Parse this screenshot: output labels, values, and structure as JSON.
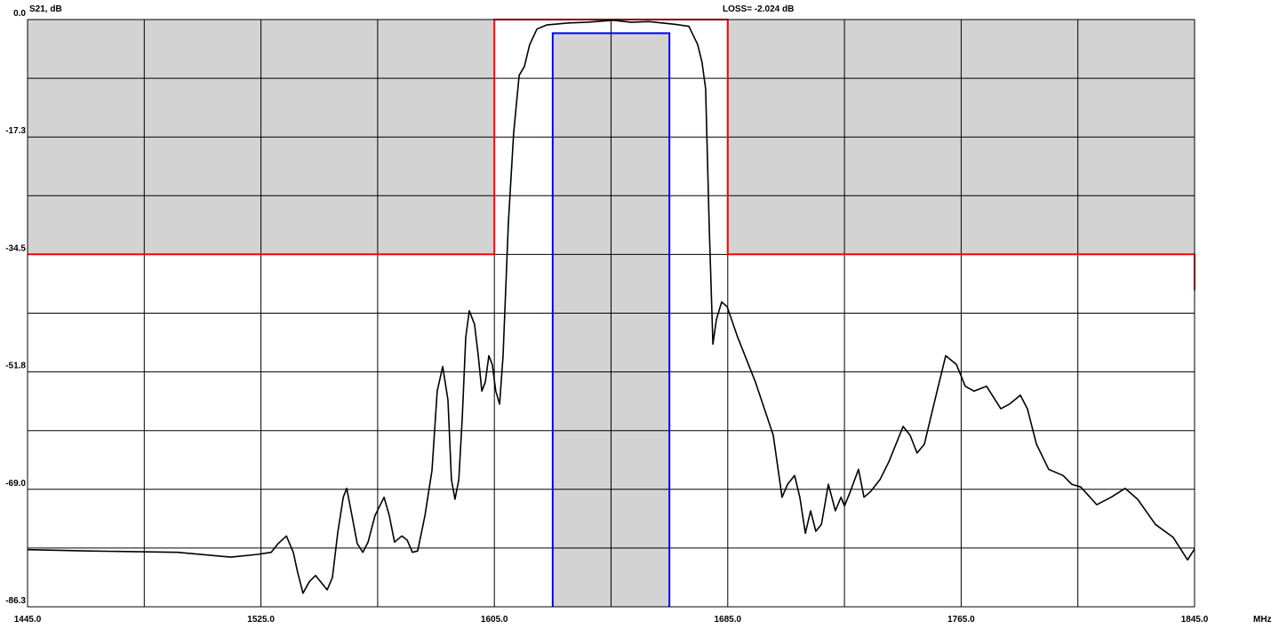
{
  "chart_data": {
    "type": "line",
    "y_label": "S21, dB",
    "x_unit": "MHz",
    "annotation": "LOSS=  -2.024 dB",
    "xlim": [
      1445,
      1845
    ],
    "ylim": [
      -86.3,
      0
    ],
    "xticks": [
      {
        "value": 1445,
        "label": "1445.0"
      },
      {
        "value": 1525,
        "label": "1525.0"
      },
      {
        "value": 1605,
        "label": "1605.0"
      },
      {
        "value": 1685,
        "label": "1685.0"
      },
      {
        "value": 1765,
        "label": "1765.0"
      },
      {
        "value": 1845,
        "label": "1845.0"
      }
    ],
    "xminor": [
      1485,
      1565,
      1645,
      1725,
      1805
    ],
    "yticks": [
      {
        "value": 0,
        "label": "0.0"
      },
      {
        "value": -17.26,
        "label": "-17.3"
      },
      {
        "value": -34.52,
        "label": "-34.5"
      },
      {
        "value": -51.78,
        "label": "-51.8"
      },
      {
        "value": -69.04,
        "label": "-69.0"
      },
      {
        "value": -86.3,
        "label": "-86.3"
      }
    ],
    "yminor": [
      -8.63,
      -25.89,
      -43.15,
      -60.41,
      -77.67
    ],
    "grid": true,
    "shade_color": "#d3d3d3",
    "mask": {
      "color": "#ff0000",
      "x": [
        1445,
        1605,
        1605,
        1685,
        1685,
        1845,
        1845
      ],
      "values": [
        -34.5,
        -34.5,
        0,
        0,
        -34.5,
        -34.5,
        -39.8
      ]
    },
    "passband": {
      "color": "#0000ff",
      "x": [
        1625,
        1665
      ],
      "level": -2.0
    },
    "color": "#000000",
    "x": [
      1445,
      1466.0,
      1496.5,
      1514.8,
      1523.9,
      1528.5,
      1530.9,
      1533.7,
      1536.1,
      1537.6,
      1539.4,
      1541.6,
      1543.7,
      1545.8,
      1547.7,
      1549.5,
      1551.3,
      1553.2,
      1554.4,
      1556.2,
      1558.0,
      1559.9,
      1561.7,
      1564.1,
      1567.2,
      1569.0,
      1570.8,
      1573.3,
      1575.1,
      1576.9,
      1578.7,
      1581.2,
      1583.6,
      1585.4,
      1587.3,
      1589.1,
      1590.3,
      1591.5,
      1592.8,
      1594.0,
      1595.2,
      1596.4,
      1598.2,
      1599.5,
      1600.7,
      1601.9,
      1603.1,
      1604.3,
      1605.5,
      1606.8,
      1608.0,
      1609.8,
      1611.6,
      1613.5,
      1615.3,
      1617.1,
      1619.6,
      1622.9,
      1630.5,
      1636.6,
      1645.8,
      1651.9,
      1658.0,
      1667.1,
      1671.7,
      1674.7,
      1676.2,
      1677.4,
      1678.7,
      1679.9,
      1681.1,
      1682.9,
      1684.8,
      1688.4,
      1694.5,
      1700.6,
      1703.6,
      1705.5,
      1707.9,
      1709.7,
      1711.6,
      1713.4,
      1715.2,
      1717.1,
      1719.5,
      1721.9,
      1723.8,
      1725.0,
      1726.8,
      1729.8,
      1731.7,
      1734.1,
      1737.2,
      1740.2,
      1745.1,
      1747.5,
      1749.9,
      1752.4,
      1756.0,
      1759.7,
      1763.4,
      1766.4,
      1769.4,
      1773.7,
      1778.6,
      1781.6,
      1785.3,
      1787.7,
      1790.8,
      1795.0,
      1799.9,
      1802.9,
      1806.0,
      1811.5,
      1816.4,
      1821.2,
      1825.5,
      1831.6,
      1837.7,
      1842.6,
      1845.0
    ],
    "values": [
      -77.9,
      -78.1,
      -78.3,
      -79.0,
      -78.6,
      -78.3,
      -77.0,
      -75.9,
      -78.3,
      -81.3,
      -84.3,
      -82.6,
      -81.7,
      -82.8,
      -83.8,
      -82.0,
      -75.5,
      -70.2,
      -68.9,
      -72.9,
      -77.0,
      -78.3,
      -76.8,
      -72.9,
      -70.2,
      -72.9,
      -76.8,
      -75.9,
      -76.5,
      -78.3,
      -78.1,
      -72.9,
      -66.3,
      -54.6,
      -51.0,
      -55.9,
      -67.6,
      -70.5,
      -67.6,
      -58.5,
      -46.7,
      -42.8,
      -44.8,
      -49.4,
      -54.6,
      -53.3,
      -49.4,
      -50.7,
      -54.6,
      -56.5,
      -49.4,
      -29.8,
      -16.7,
      -8.2,
      -6.9,
      -3.7,
      -1.4,
      -0.8,
      -0.5,
      -0.4,
      -0.1,
      -0.4,
      -0.3,
      -0.7,
      -1.0,
      -3.7,
      -6.3,
      -10.2,
      -31.1,
      -47.7,
      -44.1,
      -41.5,
      -42.2,
      -46.7,
      -53.3,
      -61.1,
      -70.2,
      -68.3,
      -67.0,
      -70.2,
      -75.5,
      -72.2,
      -75.2,
      -74.2,
      -68.3,
      -72.2,
      -70.2,
      -71.5,
      -69.6,
      -66.1,
      -70.2,
      -69.3,
      -67.6,
      -65.0,
      -59.8,
      -61.1,
      -63.7,
      -62.4,
      -55.9,
      -49.4,
      -50.7,
      -53.9,
      -54.6,
      -53.9,
      -57.2,
      -56.5,
      -55.2,
      -57.2,
      -62.4,
      -66.1,
      -67.0,
      -68.3,
      -68.7,
      -71.3,
      -70.2,
      -68.9,
      -70.5,
      -74.2,
      -76.1,
      -79.4,
      -77.8
    ]
  }
}
